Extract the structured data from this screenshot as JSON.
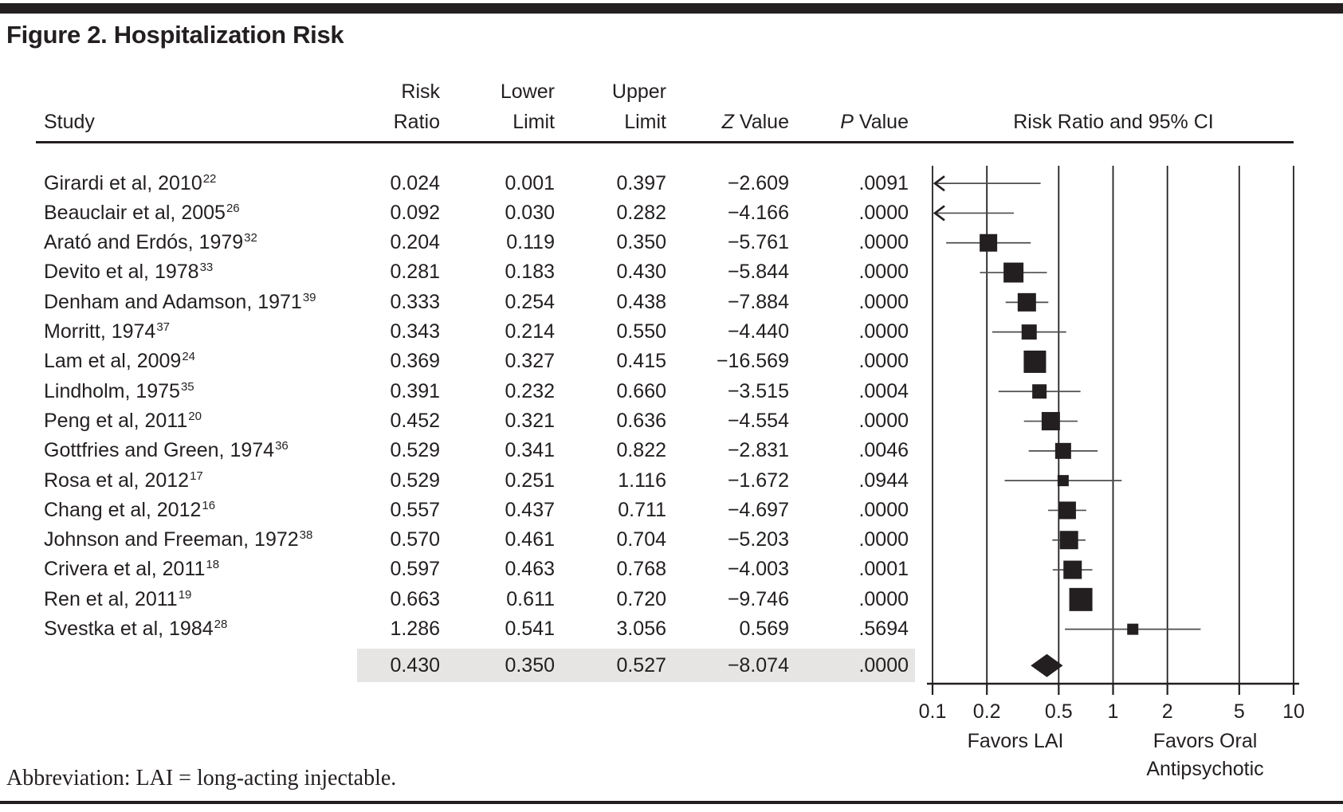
{
  "figure": {
    "title": "Figure 2. Hospitalization Risk",
    "footnote": "Abbreviation: LAI = long-acting injectable."
  },
  "headers": {
    "study": "Study",
    "risk_ratio_line1": "Risk",
    "risk_ratio_line2": "Ratio",
    "lower_line1": "Lower",
    "lower_line2": "Limit",
    "upper_line1": "Upper",
    "upper_line2": "Limit",
    "z_italic": "Z",
    "z_rest": "Value",
    "p_italic": "P",
    "p_rest": "Value",
    "plot": "Risk Ratio and 95% CI"
  },
  "colors": {
    "ink": "#231f20",
    "ci_line": "#4d4d4f",
    "summary_shade": "#e6e5e3"
  },
  "chart_data": {
    "type": "forest",
    "x_scale": "log",
    "xlim": [
      0.1,
      10
    ],
    "x_ticks": [
      0.1,
      0.2,
      0.5,
      1,
      2,
      5,
      10
    ],
    "x_tick_labels": [
      "0.1",
      "0.2",
      "0.5",
      "1",
      "2",
      "5",
      "10"
    ],
    "favors_left": "Favors LAI",
    "favors_right_line1": "Favors Oral",
    "favors_right_line2": "Antipsychotic",
    "plot_header": "Risk Ratio and 95% CI",
    "studies": [
      {
        "label": "Girardi et al, 2010",
        "ref": "22",
        "rr": "0.024",
        "lower": "0.001",
        "upper": "0.397",
        "z": "−2.609",
        "p": ".0091",
        "size": 0,
        "clipped_left": true
      },
      {
        "label": "Beauclair et al, 2005",
        "ref": "26",
        "rr": "0.092",
        "lower": "0.030",
        "upper": "0.282",
        "z": "−4.166",
        "p": ".0000",
        "size": 0,
        "clipped_left": true
      },
      {
        "label": "Arató and Erdós, 1979",
        "ref": "32",
        "rr": "0.204",
        "lower": "0.119",
        "upper": "0.350",
        "z": "−5.761",
        "p": ".0000",
        "size": 22,
        "clipped_left": false
      },
      {
        "label": "Devito et al, 1978",
        "ref": "33",
        "rr": "0.281",
        "lower": "0.183",
        "upper": "0.430",
        "z": "−5.844",
        "p": ".0000",
        "size": 25,
        "clipped_left": false
      },
      {
        "label": "Denham and Adamson, 1971",
        "ref": "39",
        "rr": "0.333",
        "lower": "0.254",
        "upper": "0.438",
        "z": "−7.884",
        "p": ".0000",
        "size": 23,
        "clipped_left": false
      },
      {
        "label": "Morritt, 1974",
        "ref": "37",
        "rr": "0.343",
        "lower": "0.214",
        "upper": "0.550",
        "z": "−4.440",
        "p": ".0000",
        "size": 19,
        "clipped_left": false
      },
      {
        "label": "Lam et al, 2009",
        "ref": "24",
        "rr": "0.369",
        "lower": "0.327",
        "upper": "0.415",
        "z": "−16.569",
        "p": ".0000",
        "size": 28,
        "clipped_left": false
      },
      {
        "label": "Lindholm, 1975",
        "ref": "35",
        "rr": "0.391",
        "lower": "0.232",
        "upper": "0.660",
        "z": "−3.515",
        "p": ".0004",
        "size": 18,
        "clipped_left": false
      },
      {
        "label": "Peng et al, 2011",
        "ref": "20",
        "rr": "0.452",
        "lower": "0.321",
        "upper": "0.636",
        "z": "−4.554",
        "p": ".0000",
        "size": 23,
        "clipped_left": false
      },
      {
        "label": "Gottfries and Green, 1974",
        "ref": "36",
        "rr": "0.529",
        "lower": "0.341",
        "upper": "0.822",
        "z": "−2.831",
        "p": ".0046",
        "size": 20,
        "clipped_left": false
      },
      {
        "label": "Rosa et al, 2012",
        "ref": "17",
        "rr": "0.529",
        "lower": "0.251",
        "upper": "1.116",
        "z": "−1.672",
        "p": ".0944",
        "size": 14,
        "clipped_left": false
      },
      {
        "label": "Chang et al, 2012",
        "ref": "16",
        "rr": "0.557",
        "lower": "0.437",
        "upper": "0.711",
        "z": "−4.697",
        "p": ".0000",
        "size": 22,
        "clipped_left": false
      },
      {
        "label": "Johnson and Freeman, 1972",
        "ref": "38",
        "rr": "0.570",
        "lower": "0.461",
        "upper": "0.704",
        "z": "−5.203",
        "p": ".0000",
        "size": 23,
        "clipped_left": false
      },
      {
        "label": "Crivera et al, 2011",
        "ref": "18",
        "rr": "0.597",
        "lower": "0.463",
        "upper": "0.768",
        "z": "−4.003",
        "p": ".0001",
        "size": 23,
        "clipped_left": false
      },
      {
        "label": "Ren et al, 2011",
        "ref": "19",
        "rr": "0.663",
        "lower": "0.611",
        "upper": "0.720",
        "z": "−9.746",
        "p": ".0000",
        "size": 29,
        "clipped_left": false
      },
      {
        "label": "Svestka et al, 1984",
        "ref": "28",
        "rr": "1.286",
        "lower": "0.541",
        "upper": "3.056",
        "z": "0.569",
        "p": ".5694",
        "size": 14,
        "clipped_left": false
      }
    ],
    "summary": {
      "rr": "0.430",
      "lower": "0.350",
      "upper": "0.527",
      "z": "−8.074",
      "p": ".0000"
    }
  }
}
